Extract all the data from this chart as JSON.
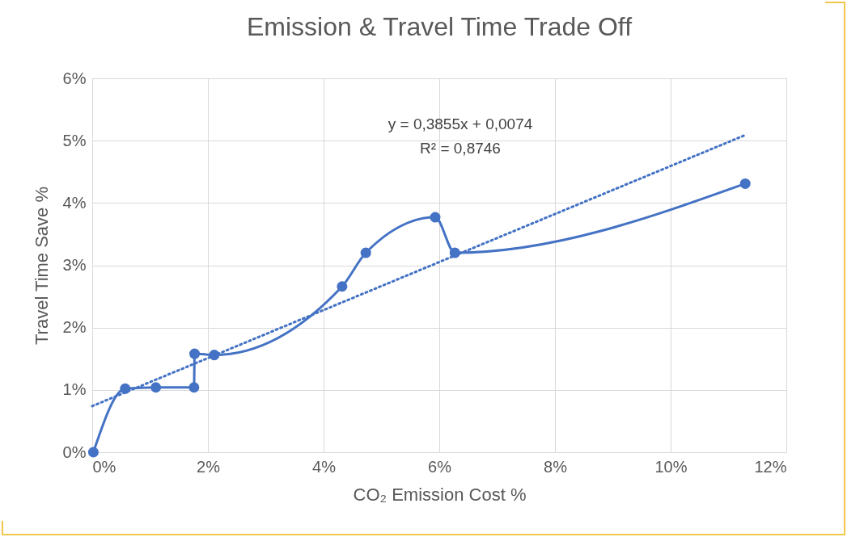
{
  "chart_data": {
    "type": "line",
    "title": "Emission & Travel Time Trade Off",
    "xlabel": "CO₂ Emission Cost %",
    "ylabel": "Travel Time Save %",
    "xlim": [
      0,
      12
    ],
    "xticks": [
      {
        "value": 0,
        "label": "0%"
      },
      {
        "value": 2,
        "label": "2%"
      },
      {
        "value": 4,
        "label": "4%"
      },
      {
        "value": 6,
        "label": "6%"
      },
      {
        "value": 8,
        "label": "8%"
      },
      {
        "value": 10,
        "label": "10%"
      },
      {
        "value": 12,
        "label": "12%"
      }
    ],
    "ylim": [
      0,
      6
    ],
    "yticks": [
      {
        "value": 0,
        "label": "0%"
      },
      {
        "value": 1,
        "label": "1%"
      },
      {
        "value": 2,
        "label": "2%"
      },
      {
        "value": 3,
        "label": "3%"
      },
      {
        "value": 4,
        "label": "4%"
      },
      {
        "value": 5,
        "label": "5%"
      },
      {
        "value": 6,
        "label": "6%"
      }
    ],
    "grid": true,
    "series": [
      {
        "type": "line",
        "color": "#4472c4",
        "marker": "circle",
        "line_style": "solid",
        "x": [
          0.02,
          0.57,
          1.1,
          1.76,
          1.77,
          2.11,
          4.32,
          4.73,
          5.93,
          6.27,
          11.29
        ],
        "values": [
          0,
          1.02,
          1.04,
          1.04,
          1.58,
          1.56,
          2.66,
          3.2,
          3.77,
          3.2,
          4.31
        ]
      },
      {
        "type": "line",
        "color": "#4472c4",
        "marker": "none",
        "line_style": "dotted",
        "x": [
          0,
          11.29
        ],
        "values": [
          0.74,
          5.09
        ]
      }
    ],
    "annotations": [
      "y = 0,3855x + 0,0074",
      "R² = 0,8746"
    ]
  }
}
